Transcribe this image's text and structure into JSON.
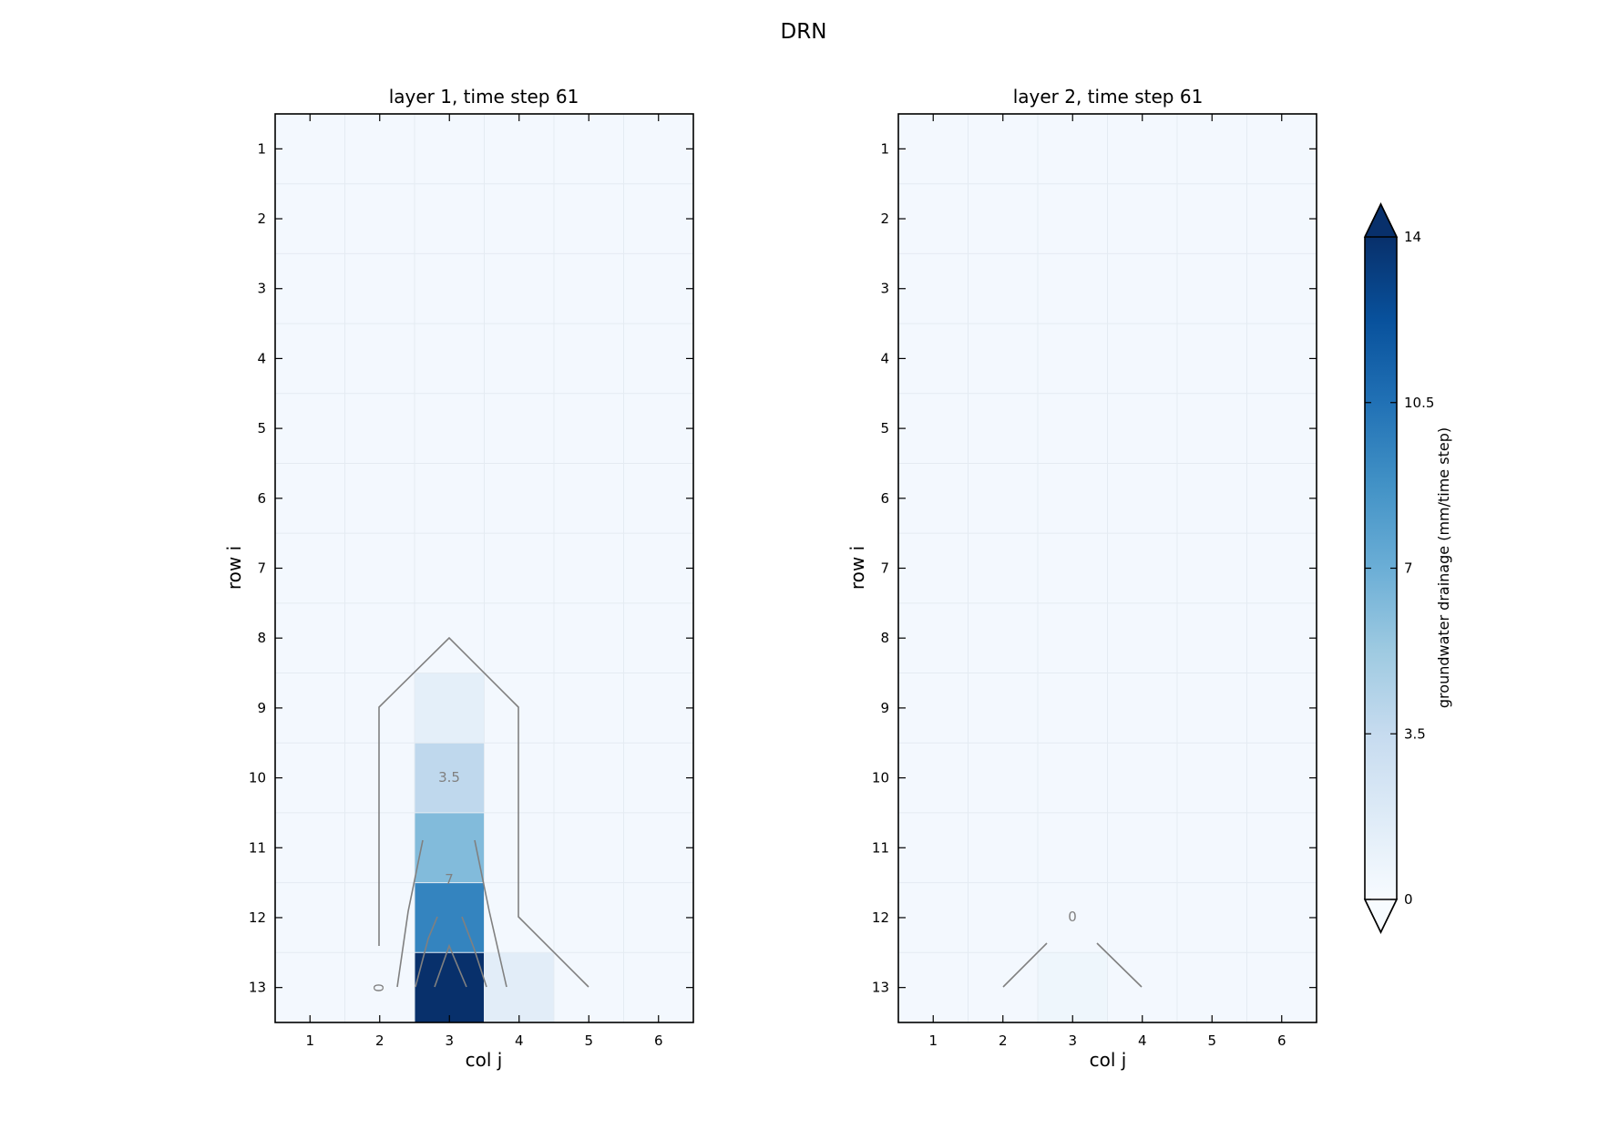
{
  "figure_title": "DRN",
  "chart_data": [
    {
      "type": "heatmap",
      "title": "layer 1, time step 61",
      "xlabel": "col j",
      "ylabel": "row i",
      "x_ticks": [
        "1",
        "2",
        "3",
        "4",
        "5",
        "6"
      ],
      "y_ticks": [
        "1",
        "2",
        "3",
        "4",
        "5",
        "6",
        "7",
        "8",
        "9",
        "10",
        "11",
        "12",
        "13"
      ],
      "grid": true,
      "cells_nonzero": [
        {
          "row": 9,
          "col": 3,
          "value": 1.3
        },
        {
          "row": 10,
          "col": 3,
          "value": 3.8
        },
        {
          "row": 11,
          "col": 3,
          "value": 6.2
        },
        {
          "row": 12,
          "col": 3,
          "value": 9.5
        },
        {
          "row": 13,
          "col": 3,
          "value": 14.0
        },
        {
          "row": 13,
          "col": 4,
          "value": 1.5
        }
      ],
      "background_value": 0.3,
      "contour_labels": [
        "0",
        "3.5",
        "7"
      ]
    },
    {
      "type": "heatmap",
      "title": "layer 2, time step 61",
      "xlabel": "col j",
      "ylabel": "row i",
      "x_ticks": [
        "1",
        "2",
        "3",
        "4",
        "5",
        "6"
      ],
      "y_ticks": [
        "1",
        "2",
        "3",
        "4",
        "5",
        "6",
        "7",
        "8",
        "9",
        "10",
        "11",
        "12",
        "13"
      ],
      "grid": true,
      "cells_nonzero": [
        {
          "row": 13,
          "col": 3,
          "value": 0.6
        }
      ],
      "background_value": 0.3,
      "contour_labels": [
        "0"
      ]
    }
  ],
  "colorbar": {
    "label": "groundwater drainage (mm/time step)",
    "ticks": [
      "0",
      "3.5",
      "7",
      "10.5",
      "14"
    ],
    "min": 0,
    "max": 14,
    "extend": "both",
    "colormap": [
      "#f7fbff",
      "#deebf7",
      "#c6dbef",
      "#9ecae1",
      "#6baed6",
      "#4292c6",
      "#2171b5",
      "#08519c",
      "#08306b"
    ]
  }
}
